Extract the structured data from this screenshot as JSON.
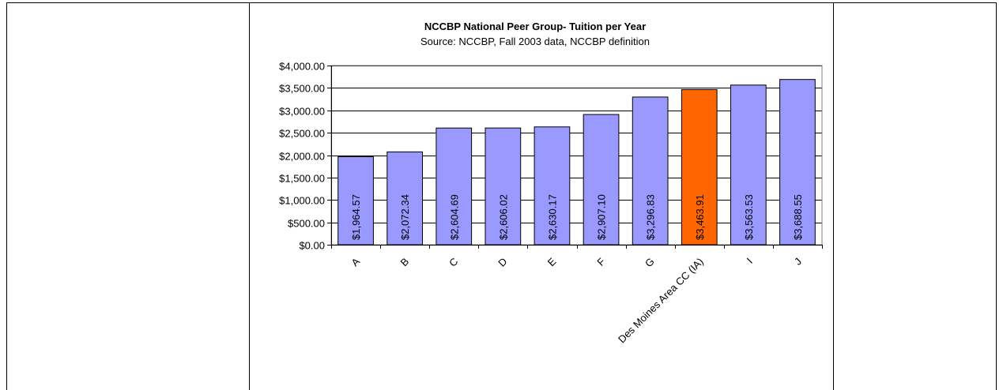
{
  "chart_data": {
    "type": "bar",
    "title": "NCCBP National Peer Group- Tuition per Year",
    "subtitle": "Source: NCCBP, Fall 2003 data, NCCBP definition",
    "categories": [
      "A",
      "B",
      "C",
      "D",
      "E",
      "F",
      "G",
      "Des Moines Area CC (IA)",
      "I",
      "J"
    ],
    "values": [
      1964.57,
      2072.34,
      2604.69,
      2606.02,
      2630.17,
      2907.1,
      3296.83,
      3463.91,
      3563.53,
      3688.55
    ],
    "data_labels": [
      "$1,964.57",
      "$2,072.34",
      "$2,604.69",
      "$2,606.02",
      "$2,630.17",
      "$2,907.10",
      "$3,296.83",
      "$3,463.91",
      "$3,563.53",
      "$3,688.55"
    ],
    "highlight_category": "Des Moines Area CC (IA)",
    "bar_color": "#9999ff",
    "highlight_color": "#ff6600",
    "ylim": [
      0,
      4000
    ],
    "yticks": [
      0,
      500,
      1000,
      1500,
      2000,
      2500,
      3000,
      3500,
      4000
    ],
    "ytick_labels": [
      "$0.00",
      "$500.00",
      "$1,000.00",
      "$1,500.00",
      "$2,000.00",
      "$2,500.00",
      "$3,000.00",
      "$3,500.00",
      "$4,000.00"
    ],
    "xlabel": "",
    "ylabel": "",
    "grid": true,
    "legend": "none"
  }
}
